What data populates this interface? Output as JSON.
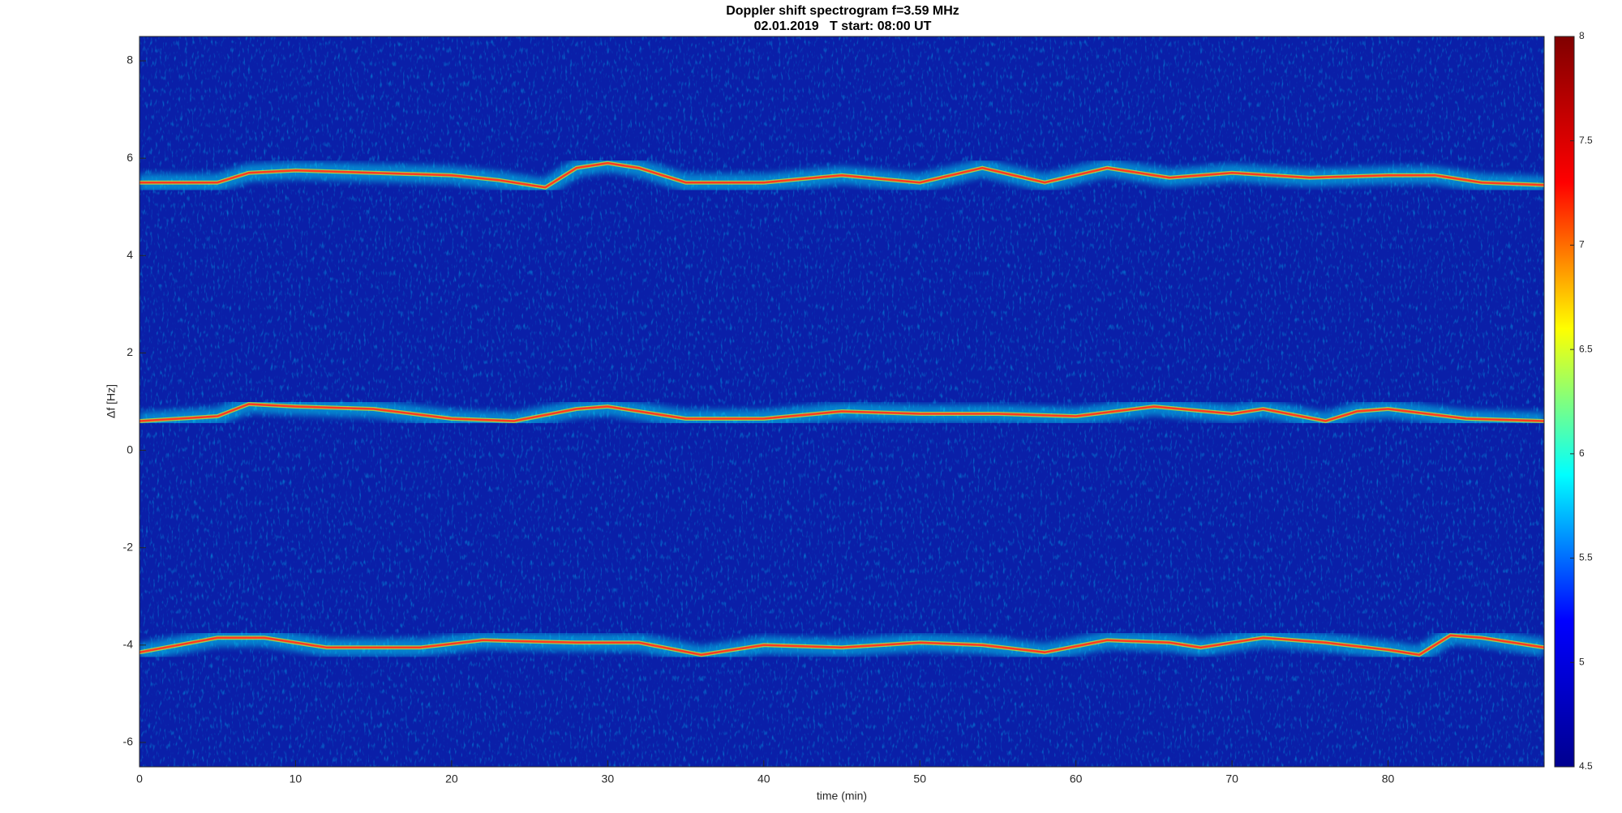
{
  "chart_data": {
    "type": "spectrogram",
    "title": "Doppler shift spectrogram f=3.59 MHz",
    "subtitle": "02.01.2019   T start: 08:00 UT",
    "x_label": "time (min)",
    "y_label": "Δf [Hz]",
    "xlim": [
      0,
      90
    ],
    "xticks": [
      0,
      10,
      20,
      30,
      40,
      50,
      60,
      70,
      80
    ],
    "ylim": [
      -6.5,
      8.5
    ],
    "yticks": [
      -6,
      -4,
      -2,
      0,
      2,
      4,
      6,
      8
    ],
    "colorbar_lim": [
      4.5,
      8
    ],
    "colorbar_ticks": [
      4.5,
      5,
      5.5,
      6,
      6.5,
      7,
      7.5,
      8
    ],
    "colormap": [
      "#00008f",
      "#0000ff",
      "#00ffff",
      "#ffff00",
      "#ff0000",
      "#800000"
    ],
    "background_color": "#0a1fa8",
    "series": [
      {
        "color": "#ff3a20",
        "x": [
          0,
          5,
          7,
          10,
          15,
          20,
          23,
          26,
          28,
          30,
          32,
          35,
          40,
          45,
          50,
          54,
          58,
          62,
          66,
          70,
          75,
          80,
          83,
          86,
          90
        ],
        "values": [
          5.5,
          5.5,
          5.7,
          5.75,
          5.7,
          5.65,
          5.55,
          5.4,
          5.8,
          5.9,
          5.8,
          5.5,
          5.5,
          5.65,
          5.5,
          5.8,
          5.5,
          5.8,
          5.6,
          5.7,
          5.6,
          5.65,
          5.65,
          5.5,
          5.45
        ]
      },
      {
        "color": "#ff3a20",
        "x": [
          0,
          5,
          7,
          10,
          15,
          20,
          24,
          28,
          30,
          35,
          40,
          45,
          50,
          55,
          60,
          65,
          70,
          72,
          76,
          78,
          80,
          85,
          90
        ],
        "values": [
          0.6,
          0.7,
          0.95,
          0.9,
          0.85,
          0.65,
          0.6,
          0.85,
          0.9,
          0.65,
          0.65,
          0.8,
          0.75,
          0.75,
          0.7,
          0.9,
          0.75,
          0.85,
          0.6,
          0.8,
          0.85,
          0.65,
          0.6
        ]
      },
      {
        "color": "#ff3a20",
        "x": [
          0,
          5,
          8,
          12,
          18,
          22,
          28,
          32,
          36,
          40,
          45,
          50,
          54,
          58,
          62,
          66,
          68,
          72,
          76,
          80,
          82,
          84,
          86,
          90
        ],
        "values": [
          -4.15,
          -3.85,
          -3.85,
          -4.05,
          -4.05,
          -3.9,
          -3.95,
          -3.95,
          -4.2,
          -4.0,
          -4.05,
          -3.95,
          -4.0,
          -4.15,
          -3.9,
          -3.95,
          -4.05,
          -3.85,
          -3.95,
          -4.1,
          -4.2,
          -3.8,
          -3.85,
          -4.05
        ]
      }
    ]
  }
}
